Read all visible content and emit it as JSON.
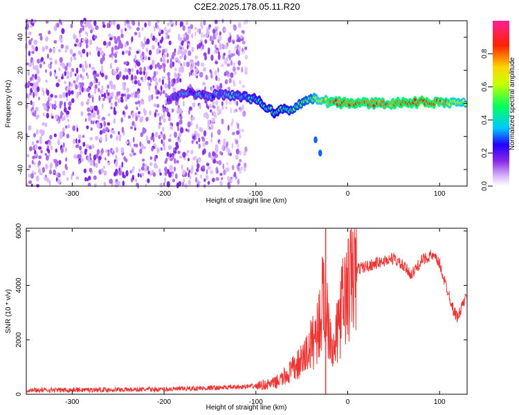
{
  "page": {
    "title": "C2E2.2025.178.05.11.R20"
  },
  "chart_data": [
    {
      "type": "heatmap",
      "xlabel": "Height of straight line (km)",
      "ylabel": "Frequency (Hz)",
      "xlim": [
        -350,
        130
      ],
      "ylim": [
        -50,
        50
      ],
      "xticks": [
        -300,
        -200,
        -100,
        0,
        100
      ],
      "yticks": [
        -40,
        -20,
        0,
        20,
        40
      ],
      "colorbar": {
        "label": "Normalized spectral amplitude",
        "range": [
          0,
          1
        ],
        "ticks": [
          0.0,
          0.2,
          0.4,
          0.6,
          0.8
        ],
        "tick_labels": [
          "0.0",
          "0.2",
          "0.4",
          "0.6",
          "0.8"
        ],
        "colormap": "rainbow (white-violet-blue-cyan-green-yellow-red-magenta)"
      },
      "features": [
        {
          "description": "scattered noise",
          "x_range": [
            -350,
            -110
          ],
          "y_range": [
            -50,
            50
          ],
          "amplitude": 0.1
        },
        {
          "description": "signal band",
          "points": [
            {
              "x": -195,
              "y": 2,
              "amp": 0.25
            },
            {
              "x": -175,
              "y": 6,
              "amp": 0.3
            },
            {
              "x": -150,
              "y": 5,
              "amp": 0.3
            },
            {
              "x": -120,
              "y": 5,
              "amp": 0.35
            },
            {
              "x": -100,
              "y": 2,
              "amp": 0.4
            },
            {
              "x": -80,
              "y": -5,
              "amp": 0.45
            },
            {
              "x": -60,
              "y": -3,
              "amp": 0.5
            },
            {
              "x": -40,
              "y": 3,
              "amp": 0.55
            },
            {
              "x": -20,
              "y": 1,
              "amp": 0.8
            },
            {
              "x": 0,
              "y": 0,
              "amp": 0.85
            },
            {
              "x": 40,
              "y": 0,
              "amp": 0.8
            },
            {
              "x": 90,
              "y": 1,
              "amp": 0.9
            },
            {
              "x": 130,
              "y": 0,
              "amp": 0.6
            }
          ]
        },
        {
          "description": "secondary trace",
          "points": [
            {
              "x": -35,
              "y": -22,
              "amp": 0.3
            },
            {
              "x": -30,
              "y": -30,
              "amp": 0.3
            }
          ]
        }
      ]
    },
    {
      "type": "line",
      "xlabel": "Height of straight line (km)",
      "ylabel": "SNR (10 * v/v)",
      "xlim": [
        -350,
        130
      ],
      "ylim": [
        0,
        6100
      ],
      "xticks": [
        -300,
        -200,
        -100,
        0,
        100
      ],
      "yticks": [
        0,
        2000,
        4000,
        6000
      ],
      "color": "#ee3333",
      "series": [
        {
          "x": [
            -350,
            -300,
            -250,
            -200,
            -150,
            -120,
            -100,
            -80,
            -70,
            -60,
            -50,
            -45,
            -40,
            -35,
            -30,
            -28,
            -25,
            -22,
            -20,
            -15,
            -10,
            -5,
            0,
            5,
            10,
            20,
            30,
            40,
            50,
            60,
            70,
            80,
            90,
            95,
            100,
            105,
            110,
            115,
            120,
            125,
            130
          ],
          "y": [
            150,
            160,
            170,
            180,
            230,
            260,
            300,
            400,
            600,
            900,
            1200,
            1500,
            1800,
            2200,
            2700,
            3300,
            3500,
            3000,
            2600,
            1500,
            2600,
            3400,
            3800,
            4300,
            4600,
            4700,
            4800,
            4900,
            5000,
            4700,
            4400,
            4900,
            5100,
            5000,
            4800,
            4200,
            3700,
            3100,
            2800,
            3300,
            3600
          ]
        }
      ],
      "spike": {
        "x": -24,
        "y": 6100
      }
    }
  ]
}
